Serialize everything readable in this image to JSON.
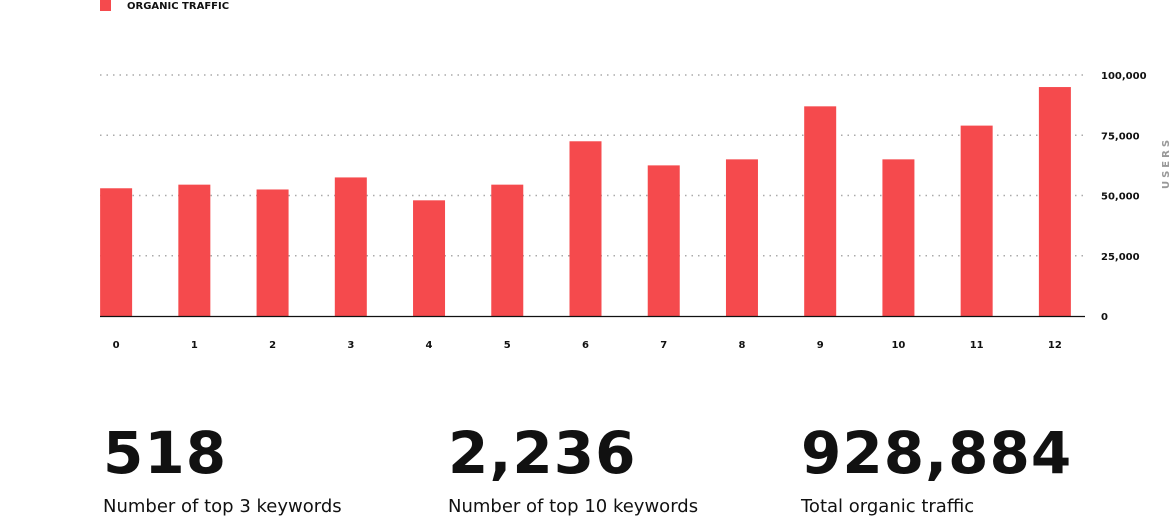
{
  "chart_data": {
    "type": "bar",
    "legend": "ORGANIC TRAFFIC",
    "y_label": "USERS",
    "categories": [
      "0",
      "1",
      "2",
      "3",
      "4",
      "5",
      "6",
      "7",
      "8",
      "9",
      "10",
      "11",
      "12"
    ],
    "series": [
      {
        "name": "ORGANIC TRAFFIC",
        "color": "#f54a4d",
        "values": [
          53000,
          54500,
          52500,
          57500,
          48000,
          54500,
          72500,
          62500,
          65000,
          87000,
          65000,
          79000,
          95000
        ]
      }
    ],
    "ylim": [
      0,
      100000
    ],
    "yticks": [
      0,
      {
        "value": 25000,
        "label": "25,000"
      },
      {
        "value": 50000,
        "label": "50,000"
      },
      {
        "value": 75000,
        "label": "75,000"
      },
      {
        "value": 100000,
        "label": "100,000"
      }
    ],
    "grid": true
  },
  "stats": [
    {
      "value": "518",
      "label": "Number of top 3 keywords"
    },
    {
      "value": "2,236",
      "label": "Number of top 10 keywords"
    },
    {
      "value": "928,884",
      "label": "Total organic traffic"
    }
  ]
}
